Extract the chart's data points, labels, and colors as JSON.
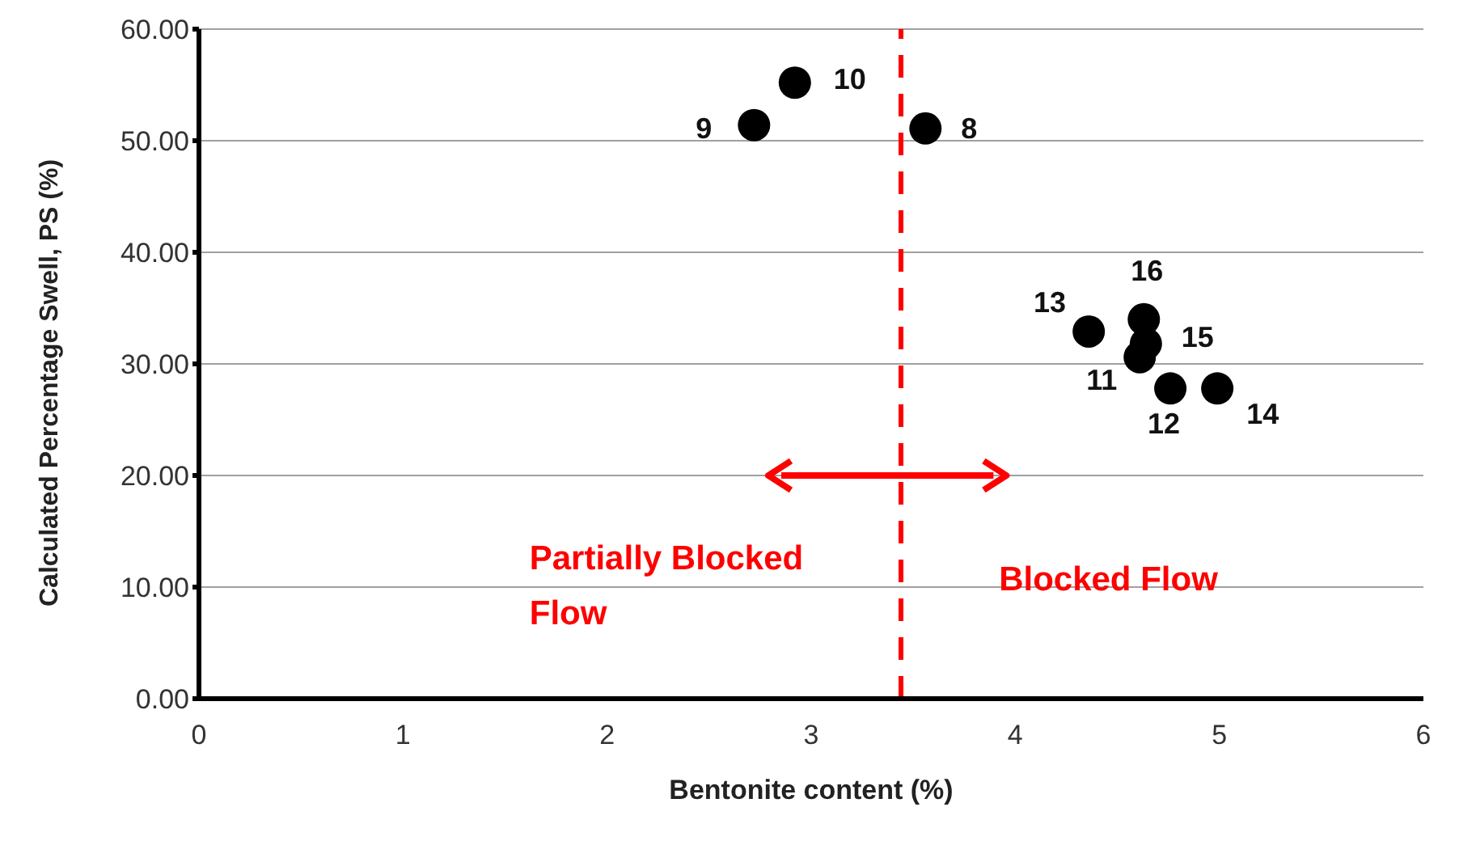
{
  "chart_data": {
    "type": "scatter",
    "xlabel": "Bentonite content (%)",
    "ylabel": "Calculated Percentage Swell, PS (%)",
    "x": [
      2.92,
      2.72,
      3.56,
      4.36,
      4.63,
      4.64,
      4.61,
      4.76,
      4.99
    ],
    "series": [
      {
        "color": "#000000",
        "values": [
          55.2,
          51.4,
          51.1,
          32.9,
          34.0,
          31.8,
          30.6,
          27.8,
          27.8
        ]
      }
    ],
    "xlim": [
      0,
      6
    ],
    "xticks": [
      0,
      1,
      2,
      3,
      4,
      5,
      6
    ],
    "ylim": [
      0,
      60
    ],
    "yticks": [
      {
        "value": 0,
        "label": "0.00"
      },
      {
        "value": 10,
        "label": "10.00"
      },
      {
        "value": 20,
        "label": "20.00"
      },
      {
        "value": 30,
        "label": "30.00"
      },
      {
        "value": 40,
        "label": "40.00"
      },
      {
        "value": 50,
        "label": "50.00"
      },
      {
        "value": 60,
        "label": "60.00"
      }
    ],
    "grid": "y",
    "marker": "circle",
    "ref_lines": [
      {
        "axis": "x",
        "value": 3.44,
        "color": "#ff0000",
        "line_style": "dashed"
      }
    ],
    "annotations": [
      {
        "text": "10",
        "x": 2.92,
        "y": 55.2
      },
      {
        "text": "9",
        "x": 2.72,
        "y": 51.4
      },
      {
        "text": "8",
        "x": 3.56,
        "y": 51.1
      },
      {
        "text": "13",
        "x": 4.36,
        "y": 32.9
      },
      {
        "text": "16",
        "x": 4.63,
        "y": 34.0
      },
      {
        "text": "15",
        "x": 4.64,
        "y": 31.8
      },
      {
        "text": "11",
        "x": 4.61,
        "y": 30.6
      },
      {
        "text": "12",
        "x": 4.76,
        "y": 27.8
      },
      {
        "text": "14",
        "x": 4.99,
        "y": 27.8
      },
      "Partially Blocked Flow",
      "Blocked Flow"
    ]
  }
}
